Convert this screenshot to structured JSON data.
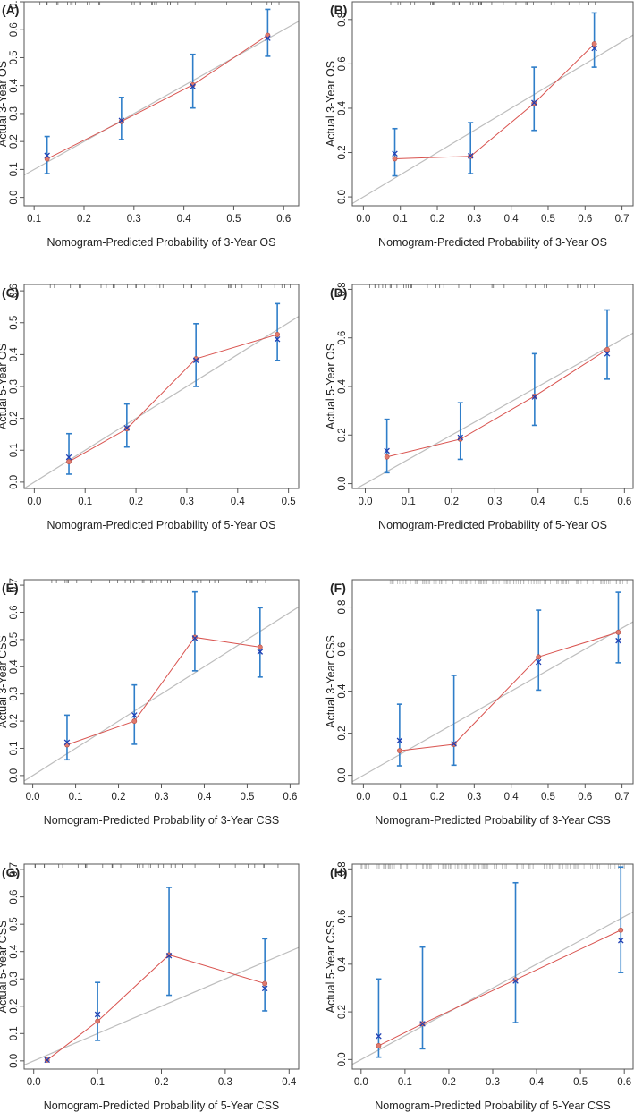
{
  "figure": {
    "background": "#ffffff",
    "obs_color": "#d9534f",
    "ci_color": "#2f7ec9",
    "cross_color": "#1f3fb3",
    "ref_color": "#bdbdbd"
  },
  "chart_data": [
    {
      "type": "line",
      "label": "(A)",
      "xlabel": "Nomogram-Predicted Probability of 3-Year OS",
      "ylabel": "Actual 3-Year OS",
      "xlim": [
        0.08,
        0.63
      ],
      "ylim": [
        -0.03,
        0.7
      ],
      "xticks": [
        0.1,
        0.2,
        0.3,
        0.4,
        0.5,
        0.6
      ],
      "yticks": [
        0.0,
        0.1,
        0.2,
        0.3,
        0.4,
        0.5,
        0.6,
        0.7
      ],
      "points": [
        {
          "x": 0.126,
          "y": 0.138,
          "ci_low": 0.085,
          "ci_high": 0.218,
          "km": 0.15
        },
        {
          "x": 0.275,
          "y": 0.272,
          "ci_low": 0.207,
          "ci_high": 0.358,
          "km": 0.275
        },
        {
          "x": 0.418,
          "y": 0.403,
          "ci_low": 0.32,
          "ci_high": 0.512,
          "km": 0.397
        },
        {
          "x": 0.568,
          "y": 0.58,
          "ci_low": 0.505,
          "ci_high": 0.673,
          "km": 0.57
        }
      ]
    },
    {
      "type": "line",
      "label": "(B)",
      "xlabel": "Nomogram-Predicted Probability of 3-Year OS",
      "ylabel": "Actual 3-Year OS",
      "xlim": [
        -0.03,
        0.73
      ],
      "ylim": [
        -0.04,
        0.88
      ],
      "xticks": [
        0.0,
        0.1,
        0.2,
        0.3,
        0.4,
        0.5,
        0.6,
        0.7
      ],
      "yticks": [
        0.0,
        0.2,
        0.4,
        0.6,
        0.8
      ],
      "points": [
        {
          "x": 0.085,
          "y": 0.172,
          "ci_low": 0.095,
          "ci_high": 0.308,
          "km": 0.195
        },
        {
          "x": 0.29,
          "y": 0.183,
          "ci_low": 0.105,
          "ci_high": 0.335,
          "km": 0.185
        },
        {
          "x": 0.462,
          "y": 0.422,
          "ci_low": 0.3,
          "ci_high": 0.585,
          "km": 0.425
        },
        {
          "x": 0.625,
          "y": 0.69,
          "ci_low": 0.585,
          "ci_high": 0.83,
          "km": 0.67
        }
      ]
    },
    {
      "type": "line",
      "label": "(C)",
      "xlabel": "Nomogram-Predicted Probability of 5-Year OS",
      "ylabel": "Actual 5-Year OS",
      "xlim": [
        -0.02,
        0.52
      ],
      "ylim": [
        -0.02,
        0.62
      ],
      "xticks": [
        0.0,
        0.1,
        0.2,
        0.3,
        0.4,
        0.5
      ],
      "yticks": [
        0.0,
        0.1,
        0.2,
        0.3,
        0.4,
        0.5,
        0.6
      ],
      "points": [
        {
          "x": 0.068,
          "y": 0.064,
          "ci_low": 0.025,
          "ci_high": 0.152,
          "km": 0.078
        },
        {
          "x": 0.182,
          "y": 0.167,
          "ci_low": 0.11,
          "ci_high": 0.245,
          "km": 0.17
        },
        {
          "x": 0.318,
          "y": 0.387,
          "ci_low": 0.3,
          "ci_high": 0.497,
          "km": 0.382
        },
        {
          "x": 0.478,
          "y": 0.463,
          "ci_low": 0.382,
          "ci_high": 0.56,
          "km": 0.448
        }
      ]
    },
    {
      "type": "line",
      "label": "(D)",
      "xlabel": "Nomogram-Predicted Probability of 5-Year OS",
      "ylabel": "Actual 5-Year OS",
      "xlim": [
        -0.03,
        0.62
      ],
      "ylim": [
        -0.02,
        0.82
      ],
      "xticks": [
        0.0,
        0.1,
        0.2,
        0.3,
        0.4,
        0.5,
        0.6
      ],
      "yticks": [
        0.0,
        0.2,
        0.4,
        0.6,
        0.8
      ],
      "points": [
        {
          "x": 0.05,
          "y": 0.11,
          "ci_low": 0.045,
          "ci_high": 0.265,
          "km": 0.135
        },
        {
          "x": 0.22,
          "y": 0.183,
          "ci_low": 0.1,
          "ci_high": 0.333,
          "km": 0.19
        },
        {
          "x": 0.392,
          "y": 0.36,
          "ci_low": 0.24,
          "ci_high": 0.535,
          "km": 0.357
        },
        {
          "x": 0.56,
          "y": 0.552,
          "ci_low": 0.43,
          "ci_high": 0.715,
          "km": 0.535
        }
      ]
    },
    {
      "type": "line",
      "label": "(E)",
      "xlabel": "Nomogram-Predicted Probability of 3-Year CSS",
      "ylabel": "Actual 3-Year CSS",
      "xlim": [
        -0.02,
        0.62
      ],
      "ylim": [
        -0.03,
        0.72
      ],
      "xticks": [
        0.0,
        0.1,
        0.2,
        0.3,
        0.4,
        0.5,
        0.6
      ],
      "yticks": [
        0.0,
        0.1,
        0.2,
        0.3,
        0.4,
        0.5,
        0.6,
        0.7
      ],
      "points": [
        {
          "x": 0.08,
          "y": 0.113,
          "ci_low": 0.058,
          "ci_high": 0.222,
          "km": 0.122
        },
        {
          "x": 0.237,
          "y": 0.2,
          "ci_low": 0.115,
          "ci_high": 0.333,
          "km": 0.222
        },
        {
          "x": 0.378,
          "y": 0.508,
          "ci_low": 0.385,
          "ci_high": 0.675,
          "km": 0.505
        },
        {
          "x": 0.53,
          "y": 0.472,
          "ci_low": 0.362,
          "ci_high": 0.617,
          "km": 0.455
        }
      ]
    },
    {
      "type": "line",
      "label": "(F)",
      "xlabel": "Nomogram-Predicted Probability of 3-Year CSS",
      "ylabel": "Actual 3-Year CSS",
      "xlim": [
        -0.03,
        0.73
      ],
      "ylim": [
        -0.04,
        0.93
      ],
      "xticks": [
        0.0,
        0.1,
        0.2,
        0.3,
        0.4,
        0.5,
        0.6,
        0.7
      ],
      "yticks": [
        0.0,
        0.2,
        0.4,
        0.6,
        0.8
      ],
      "points": [
        {
          "x": 0.098,
          "y": 0.117,
          "ci_low": 0.045,
          "ci_high": 0.338,
          "km": 0.165
        },
        {
          "x": 0.245,
          "y": 0.147,
          "ci_low": 0.048,
          "ci_high": 0.475,
          "km": 0.15
        },
        {
          "x": 0.474,
          "y": 0.563,
          "ci_low": 0.405,
          "ci_high": 0.785,
          "km": 0.538
        },
        {
          "x": 0.69,
          "y": 0.68,
          "ci_low": 0.535,
          "ci_high": 0.87,
          "km": 0.64
        }
      ]
    },
    {
      "type": "line",
      "label": "(G)",
      "xlabel": "Nomogram-Predicted Probability of 5-Year CSS",
      "ylabel": "Actual 5-Year CSS",
      "xlim": [
        -0.015,
        0.415
      ],
      "ylim": [
        -0.03,
        0.72
      ],
      "xticks": [
        0.0,
        0.1,
        0.2,
        0.3,
        0.4
      ],
      "yticks": [
        0.0,
        0.1,
        0.2,
        0.3,
        0.4,
        0.5,
        0.6,
        0.7
      ],
      "points": [
        {
          "x": 0.021,
          "y": 0.003,
          "ci_low": null,
          "ci_high": null,
          "km": 0.003
        },
        {
          "x": 0.1,
          "y": 0.145,
          "ci_low": 0.075,
          "ci_high": 0.287,
          "km": 0.17
        },
        {
          "x": 0.212,
          "y": 0.388,
          "ci_low": 0.24,
          "ci_high": 0.635,
          "km": 0.385
        },
        {
          "x": 0.362,
          "y": 0.283,
          "ci_low": 0.183,
          "ci_high": 0.447,
          "km": 0.265
        }
      ]
    },
    {
      "type": "line",
      "label": "(H)",
      "xlabel": "Nomogram-Predicted Probability of 5-Year CSS",
      "ylabel": "Actual 5-Year CSS",
      "xlim": [
        -0.02,
        0.62
      ],
      "ylim": [
        -0.04,
        0.82
      ],
      "xticks": [
        0.0,
        0.1,
        0.2,
        0.3,
        0.4,
        0.5,
        0.6
      ],
      "yticks": [
        0.0,
        0.2,
        0.4,
        0.6,
        0.8
      ],
      "points": [
        {
          "x": 0.04,
          "y": 0.058,
          "ci_low": 0.01,
          "ci_high": 0.338,
          "km": 0.098
        },
        {
          "x": 0.14,
          "y": 0.15,
          "ci_low": 0.045,
          "ci_high": 0.472,
          "km": 0.15
        },
        {
          "x": 0.352,
          "y": 0.335,
          "ci_low": 0.155,
          "ci_high": 0.742,
          "km": 0.33
        },
        {
          "x": 0.592,
          "y": 0.543,
          "ci_low": 0.365,
          "ci_high": 0.808,
          "km": 0.5
        }
      ]
    }
  ]
}
